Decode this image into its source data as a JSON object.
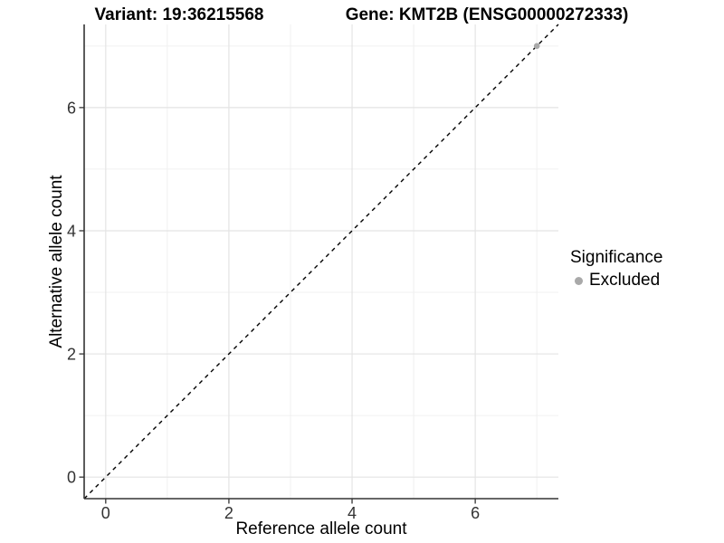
{
  "header": {
    "variant_title": "Variant: 19:36215568",
    "gene_title": "Gene: KMT2B (ENSG00000272333)"
  },
  "chart_data": {
    "type": "scatter",
    "title": "Variant: 19:36215568  /  Gene: KMT2B (ENSG00000272333)",
    "xlabel": "Reference allele count",
    "ylabel": "Alternative allele count",
    "xlim": [
      -0.35,
      7.35
    ],
    "ylim": [
      -0.35,
      7.35
    ],
    "xticks": [
      0,
      2,
      4,
      6
    ],
    "yticks": [
      0,
      2,
      4,
      6
    ],
    "xticks_minor": [
      1,
      3,
      5,
      7
    ],
    "yticks_minor": [
      1,
      3,
      5,
      7
    ],
    "grid": "on",
    "identity_line": {
      "style": "dashed",
      "slope": 1,
      "intercept": 0,
      "color": "#000000"
    },
    "series": [
      {
        "name": "Excluded",
        "color": "#a9a9a9",
        "points": [
          [
            7,
            7
          ]
        ]
      }
    ],
    "legend": {
      "title": "Significance",
      "position": "right",
      "entries": [
        {
          "label": "Excluded",
          "color": "#a9a9a9"
        }
      ]
    }
  },
  "colors": {
    "background": "#ffffff",
    "panel_background": "#ffffff",
    "grid_major": "#e4e4e4",
    "grid_minor": "#f0f0f0",
    "axis_line": "#333333",
    "tick_mark": "#333333",
    "tick_label_text": "#333333",
    "title_text": "#000000",
    "point_excluded": "#a9a9a9"
  }
}
